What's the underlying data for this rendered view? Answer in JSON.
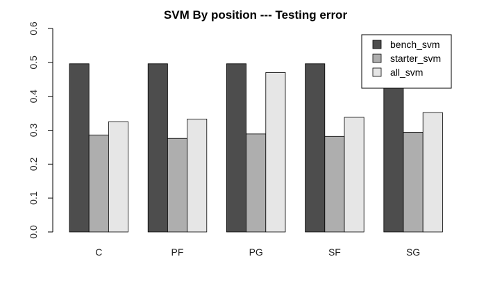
{
  "chart_data": {
    "type": "bar",
    "title": "SVM By position --- Testing error",
    "xlabel": "",
    "ylabel": "",
    "categories": [
      "C",
      "PF",
      "PG",
      "SF",
      "SG"
    ],
    "series": [
      {
        "name": "bench_svm",
        "color": "#4d4d4d",
        "values": [
          0.496,
          0.496,
          0.496,
          0.496,
          0.434
        ]
      },
      {
        "name": "starter_svm",
        "color": "#aeaeae",
        "values": [
          0.286,
          0.276,
          0.289,
          0.282,
          0.294
        ]
      },
      {
        "name": "all_svm",
        "color": "#e6e6e6",
        "values": [
          0.325,
          0.333,
          0.47,
          0.338,
          0.352
        ]
      }
    ],
    "ylim": [
      0,
      0.6
    ],
    "yticks": [
      "0.0",
      "0.1",
      "0.2",
      "0.3",
      "0.4",
      "0.5",
      "0.6"
    ],
    "grid": false,
    "legend_position": "top-right"
  }
}
